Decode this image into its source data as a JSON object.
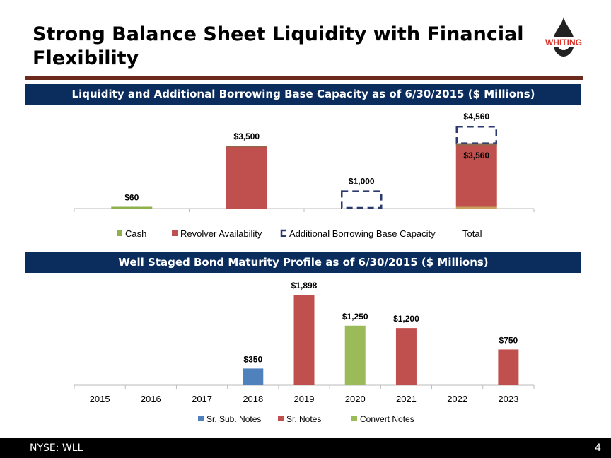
{
  "title": "Strong Balance Sheet Liquidity with Financial Flexibility",
  "logo": "WHITING",
  "footer": {
    "ticker": "NYSE: WLL",
    "page": "4"
  },
  "colors": {
    "cash": "#8fb04a",
    "revolver": "#c0504d",
    "additional": "#2a3a6e",
    "sub_notes": "#4f81bd",
    "sr_notes": "#c0504d",
    "convert": "#9bbb59",
    "band": "#0b2d5e"
  },
  "chart_data": [
    {
      "type": "bar",
      "title": "Liquidity and Additional Borrowing Base Capacity as of 6/30/2015 ($ Millions)",
      "categories": [
        "Cash",
        "Revolver Availability",
        "Additional Borrowing Base Capacity",
        "Total"
      ],
      "legend": [
        "Cash",
        "Revolver Availability",
        "Additional Borrowing Base Capacity",
        "Total"
      ],
      "legend_placement": "bottom",
      "series": [
        {
          "name": "Cash",
          "values": [
            60,
            0,
            0,
            60
          ]
        },
        {
          "name": "Revolver Availability",
          "values": [
            0,
            3500,
            0,
            3500
          ]
        },
        {
          "name": "Additional Borrowing Base Capacity",
          "values": [
            0,
            0,
            1000,
            1000
          ],
          "style": "dashed-outline"
        }
      ],
      "labels": [
        "$60",
        "$3,500",
        "$1,000",
        "$4,560"
      ],
      "total_inner_label": "$3,560",
      "ylim": [
        0,
        4600
      ]
    },
    {
      "type": "bar",
      "title": "Well Staged Bond Maturity Profile as of 6/30/2015 ($ Millions)",
      "categories": [
        "2015",
        "2016",
        "2017",
        "2018",
        "2019",
        "2020",
        "2021",
        "2022",
        "2023"
      ],
      "legend_placement": "bottom",
      "series": [
        {
          "name": "Sr. Sub. Notes",
          "values": [
            0,
            0,
            0,
            350,
            0,
            0,
            0,
            0,
            0
          ]
        },
        {
          "name": "Sr. Notes",
          "values": [
            0,
            0,
            0,
            0,
            1898,
            0,
            1200,
            0,
            750
          ]
        },
        {
          "name": "Convert Notes",
          "values": [
            0,
            0,
            0,
            0,
            0,
            1250,
            0,
            0,
            0
          ]
        }
      ],
      "labels": [
        "",
        "",
        "",
        "$350",
        "$1,898",
        "$1,250",
        "$1,200",
        "",
        "$750"
      ],
      "ylim": [
        0,
        2000
      ]
    }
  ]
}
